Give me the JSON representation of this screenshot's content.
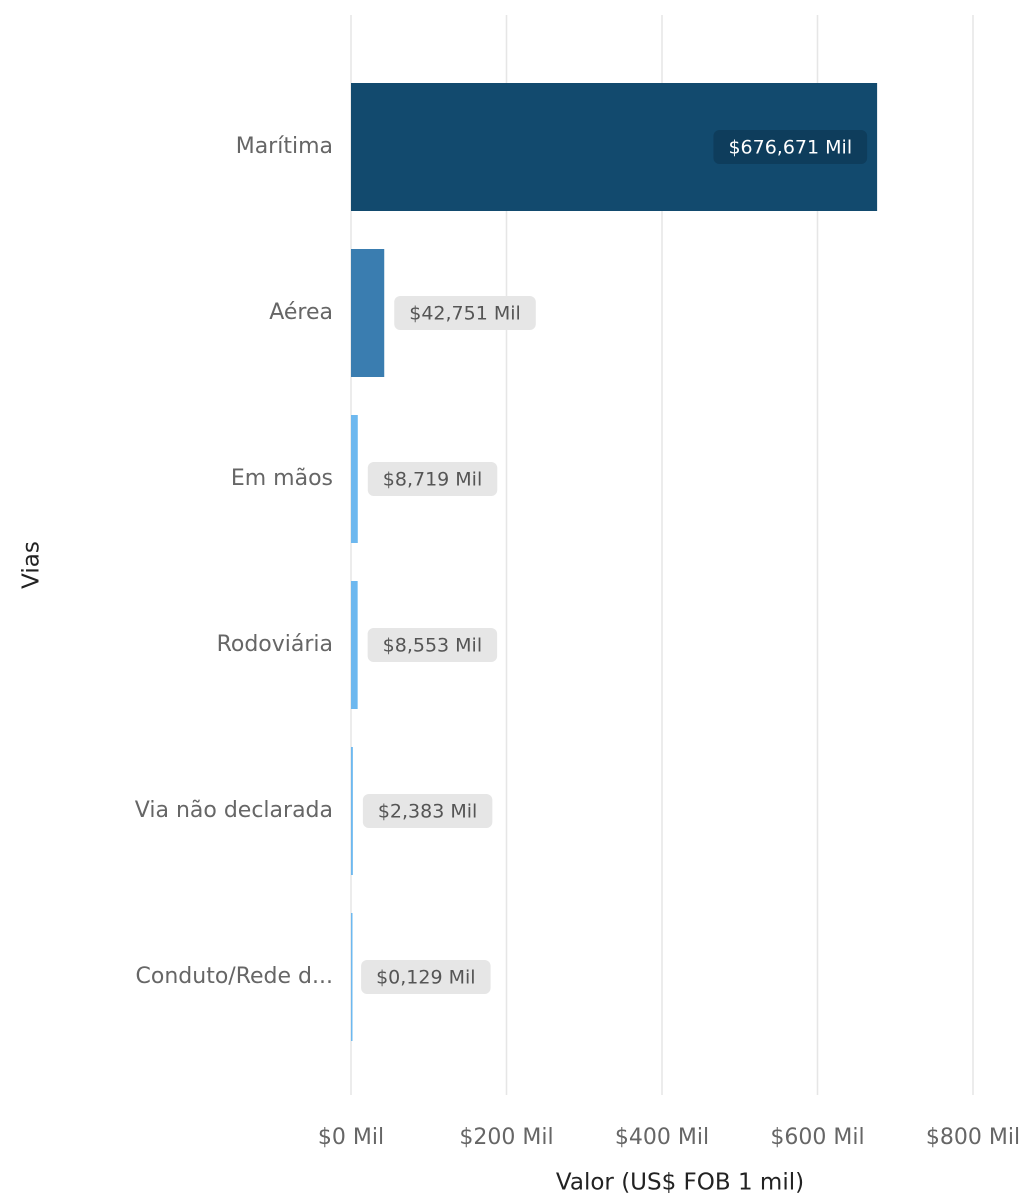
{
  "chart_data": {
    "type": "bar",
    "orientation": "horizontal",
    "x_label": "Valor (US$ FOB 1 mil)",
    "y_label": "Vias",
    "categories": [
      "Marítima",
      "Aérea",
      "Em mãos",
      "Rodoviária",
      "Via não declarada",
      "Conduto/Rede d..."
    ],
    "values": [
      676.671,
      42.751,
      8.719,
      8.553,
      2.383,
      0.129
    ],
    "value_labels": [
      "$676,671 Mil",
      "$42,751 Mil",
      "$8,719 Mil",
      "$8,553 Mil",
      "$2,383 Mil",
      "$0,129 Mil"
    ],
    "colors": [
      "#124a6e",
      "#3a7db0",
      "#6db8ef",
      "#6db8ef",
      "#6db8ef",
      "#6db8ef"
    ],
    "xlim": [
      0,
      800
    ],
    "xticks": [
      {
        "value": 0,
        "label": "$0 Mil"
      },
      {
        "value": 200,
        "label": "$200 Mil"
      },
      {
        "value": 400,
        "label": "$400 Mil"
      },
      {
        "value": 600,
        "label": "$600 Mil"
      },
      {
        "value": 800,
        "label": "$800 Mil"
      }
    ],
    "grid": true
  }
}
